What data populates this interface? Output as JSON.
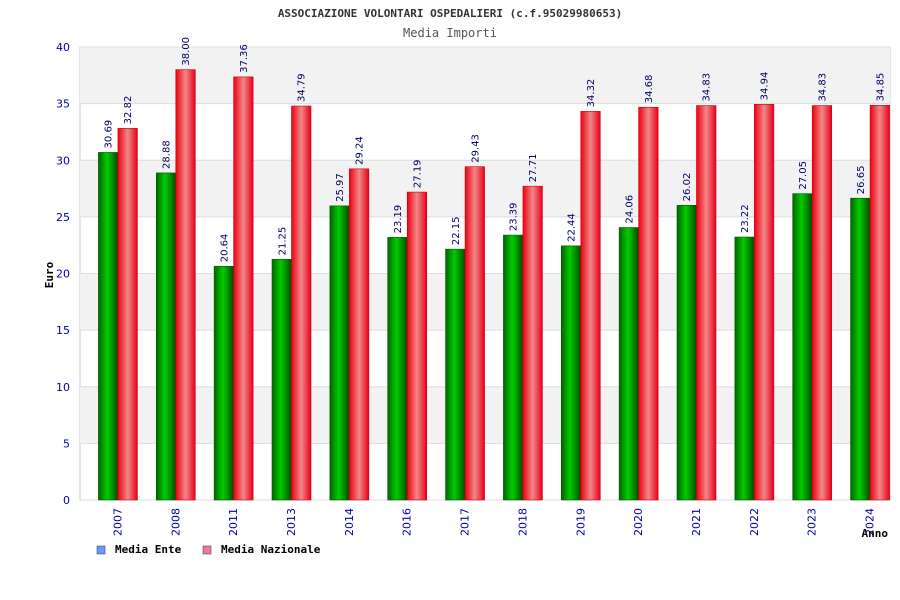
{
  "chart_data": {
    "type": "bar",
    "title": "ASSOCIAZIONE VOLONTARI OSPEDALIERI (c.f.95029980653)",
    "subtitle": "Media Importi",
    "xlabel": "Anno",
    "ylabel": "Euro",
    "ylim": [
      0,
      40
    ],
    "yticks": [
      0,
      5,
      10,
      15,
      20,
      25,
      30,
      35,
      40
    ],
    "grid": true,
    "legend_position": "bottom-left",
    "categories": [
      "2007",
      "2008",
      "2011",
      "2013",
      "2014",
      "2016",
      "2017",
      "2018",
      "2019",
      "2020",
      "2021",
      "2022",
      "2023",
      "2024"
    ],
    "series": [
      {
        "name": "Media Ente",
        "legend_color": "#6699ff",
        "bar_color": "#00aa00",
        "values": [
          30.69,
          28.88,
          20.64,
          21.25,
          25.97,
          23.19,
          22.15,
          23.39,
          22.44,
          24.06,
          26.02,
          23.22,
          27.05,
          26.65
        ],
        "labels": [
          "30.69",
          "28.88",
          "20.64",
          "21.25",
          "25.97",
          "23.19",
          "22.15",
          "23.39",
          "22.44",
          "24.06",
          "26.02",
          "23.22",
          "27.05",
          "26.65"
        ]
      },
      {
        "name": "Media Nazionale",
        "legend_color": "#ee77aa",
        "bar_color": "#ee1122",
        "values": [
          32.82,
          38.0,
          37.36,
          34.79,
          29.24,
          27.19,
          29.43,
          27.71,
          34.32,
          34.68,
          34.83,
          34.94,
          34.83,
          34.85
        ],
        "labels": [
          "32.82",
          "38.00",
          "37.36",
          "34.79",
          "29.24",
          "27.19",
          "29.43",
          "27.71",
          "34.32",
          "34.68",
          "34.83",
          "34.94",
          "34.83",
          "34.85"
        ]
      }
    ]
  }
}
